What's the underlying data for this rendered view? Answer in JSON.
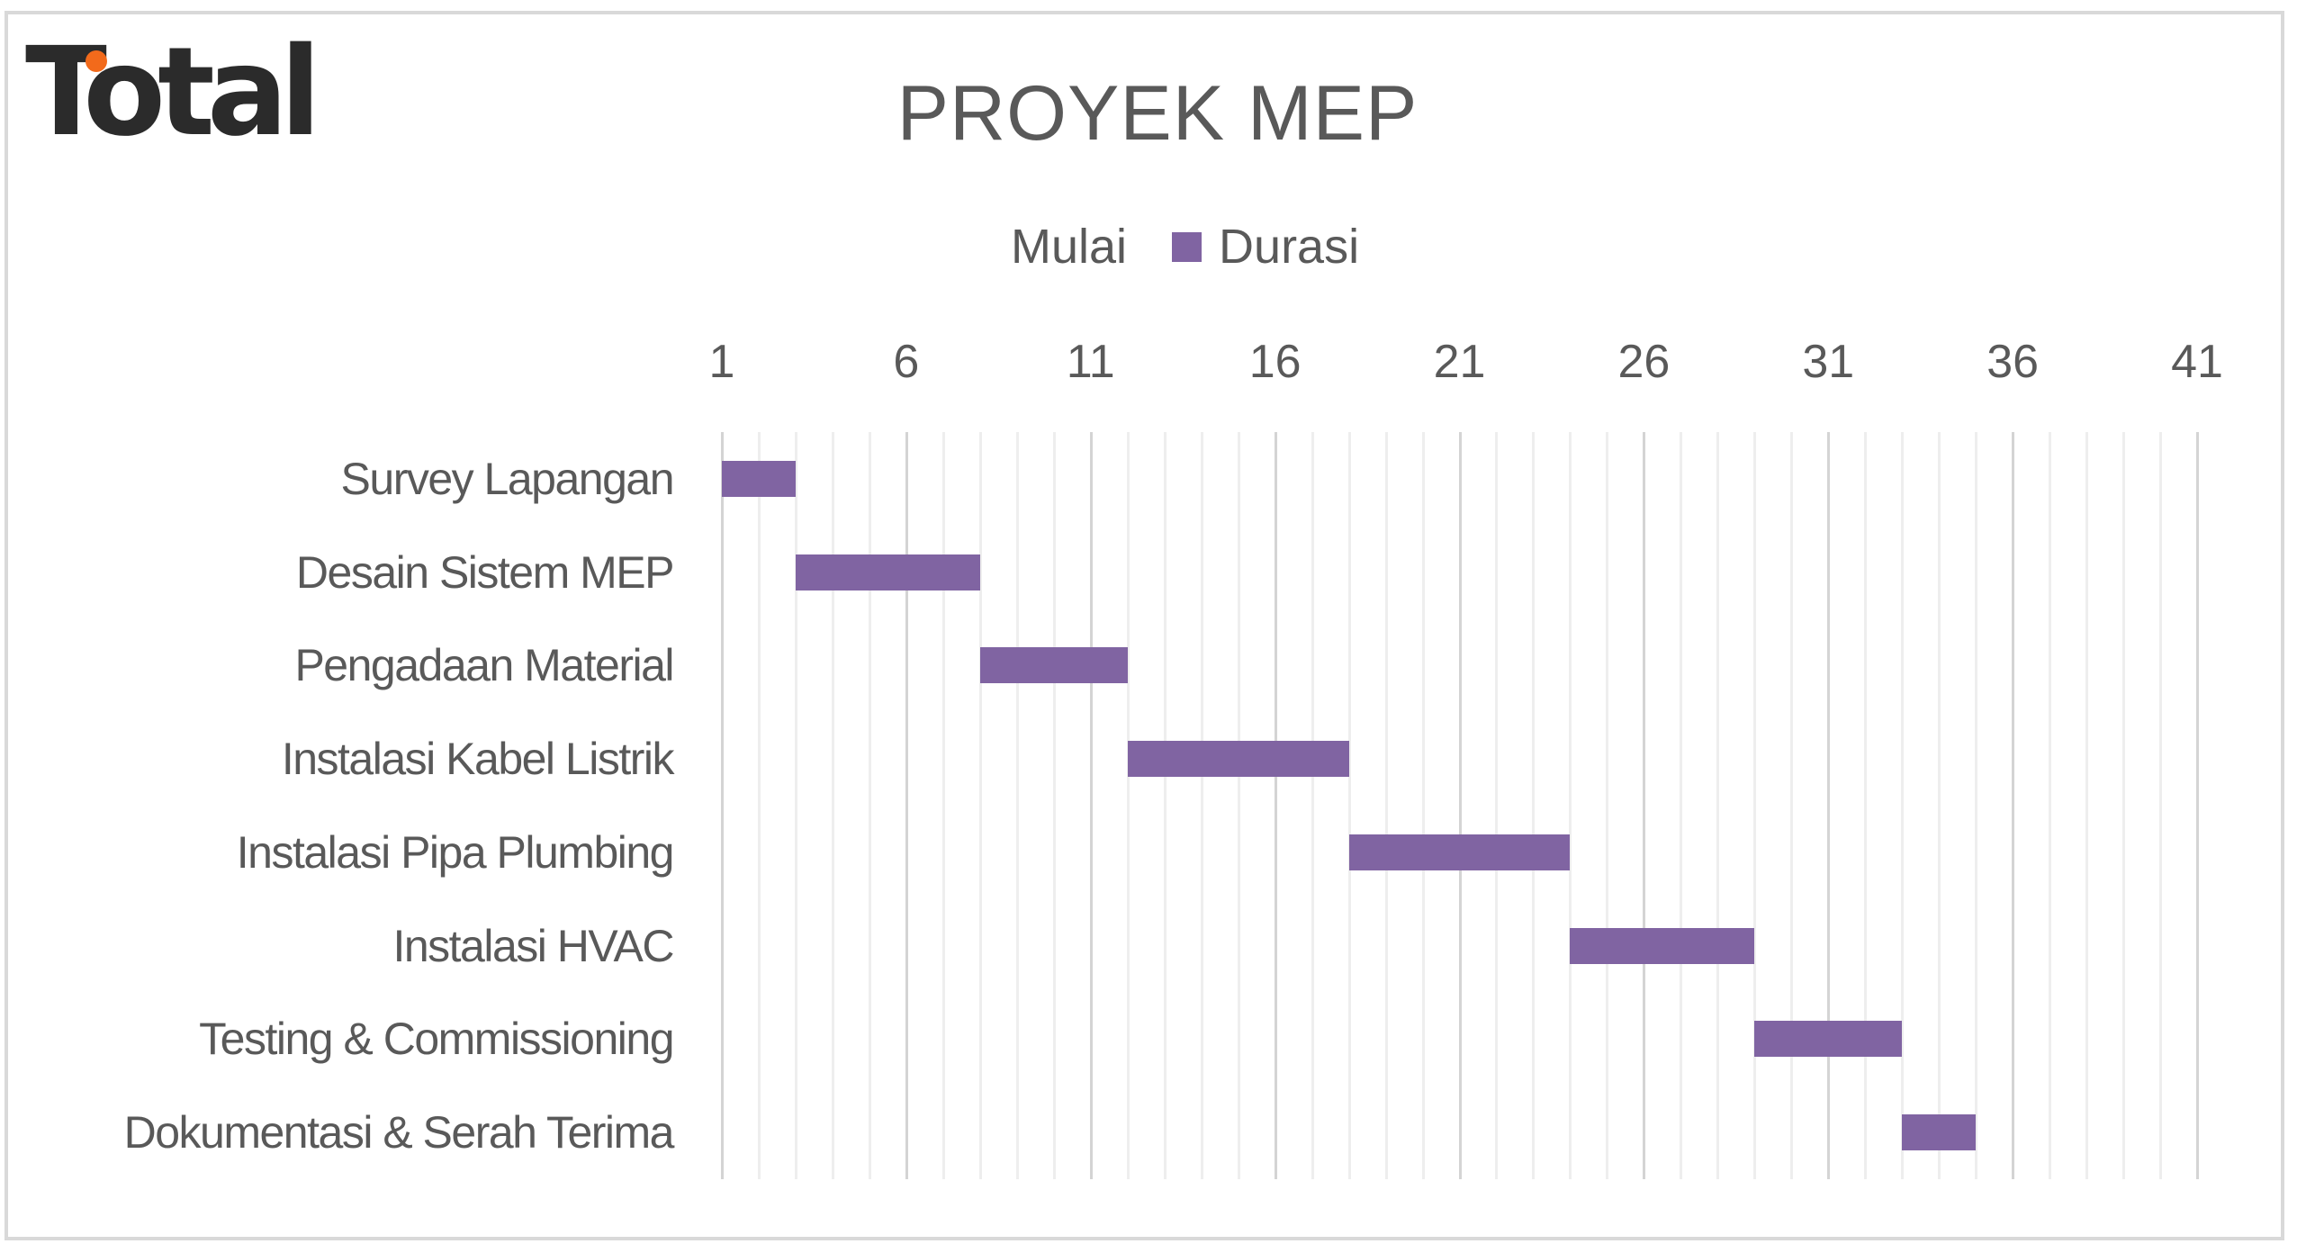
{
  "logo": {
    "text": "Total",
    "text_color": "#2b2b2b",
    "dot_color": "#f26a1b"
  },
  "chart": {
    "title": "PROYEK MEP",
    "legend": [
      {
        "label": "Mulai",
        "swatch": "none"
      },
      {
        "label": "Durasi",
        "swatch": "#8064a2"
      }
    ],
    "bar_color": "#8064a2"
  },
  "axis": {
    "ticks": [
      "1",
      "6",
      "11",
      "16",
      "21",
      "26",
      "31",
      "36",
      "41"
    ]
  },
  "rows": [
    {
      "label": "Survey Lapangan"
    },
    {
      "label": "Desain Sistem MEP"
    },
    {
      "label": "Pengadaan Material"
    },
    {
      "label": "Instalasi Kabel Listrik"
    },
    {
      "label": "Instalasi Pipa Plumbing"
    },
    {
      "label": "Instalasi HVAC"
    },
    {
      "label": "Testing & Commissioning"
    },
    {
      "label": "Dokumentasi & Serah Terima"
    }
  ],
  "chart_data": {
    "type": "bar",
    "orientation": "horizontal",
    "stacked": true,
    "title": "PROYEK MEP",
    "categories": [
      "Survey Lapangan",
      "Desain Sistem MEP",
      "Pengadaan Material",
      "Instalasi Kabel Listrik",
      "Instalasi Pipa Plumbing",
      "Instalasi HVAC",
      "Testing & Commissioning",
      "Dokumentasi & Serah Terima"
    ],
    "series": [
      {
        "name": "Mulai",
        "values": [
          1,
          3,
          8,
          12,
          18,
          24,
          29,
          33
        ],
        "color": "transparent"
      },
      {
        "name": "Durasi",
        "values": [
          2,
          5,
          4,
          6,
          6,
          5,
          4,
          2
        ],
        "color": "#8064a2"
      }
    ],
    "xlabel": "",
    "ylabel": "",
    "xlim": [
      1,
      41
    ],
    "xticks": [
      1,
      6,
      11,
      16,
      21,
      26,
      31,
      36,
      41
    ],
    "x_axis_position": "top",
    "grid": {
      "major_step": 5,
      "minor_step": 1,
      "vertical": true
    },
    "legend_position": "top",
    "y_order": "reversed"
  }
}
